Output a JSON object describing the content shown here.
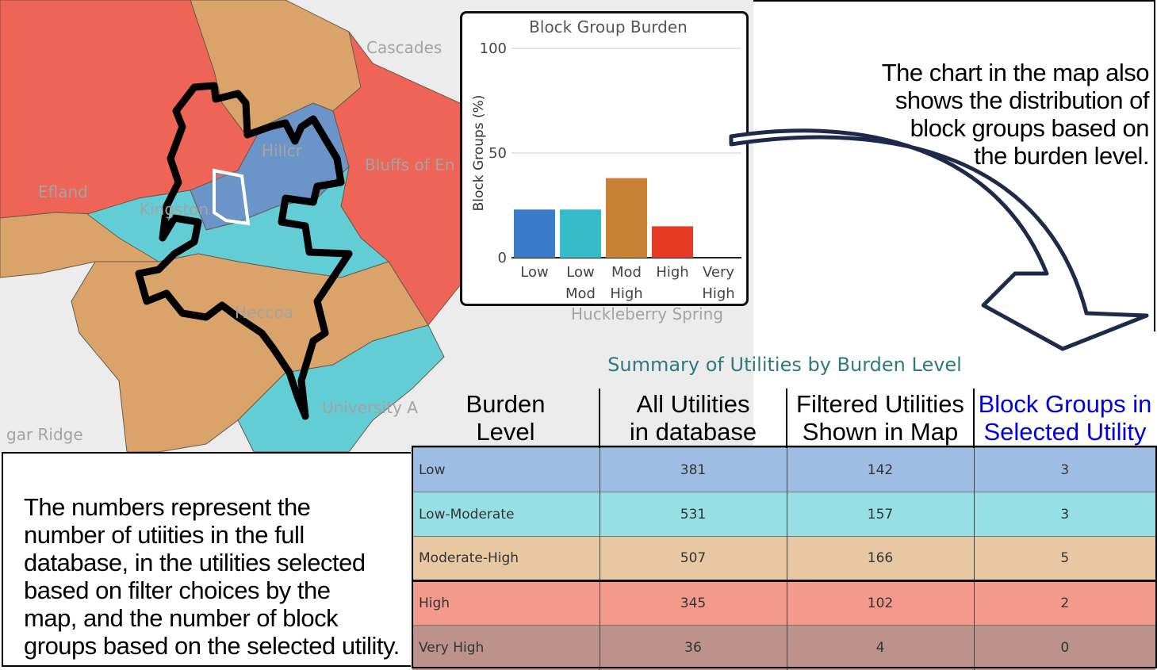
{
  "map": {
    "place_labels": [
      "Cascades",
      "Bluffs of En",
      "Hillcr",
      "Efland",
      "Kingston",
      "Heccoa",
      "Huckleberry Spring",
      "University A",
      "gar Ridge"
    ],
    "colors": {
      "low": "#6b95c8",
      "low_mod": "#63cdd5",
      "mod_high": "#d9a36a",
      "high": "#ee6456",
      "background": "#ececec",
      "boundary": "#000000",
      "selected": "#ffffff"
    }
  },
  "chart": {
    "title": "Block Group Burden",
    "ylabel": "Block Groups (%)",
    "yticks": [
      "100",
      "50",
      "0"
    ]
  },
  "chart_data": {
    "type": "bar",
    "title": "Block Group Burden",
    "xlabel": "",
    "ylabel": "Block Groups (%)",
    "categories": [
      "Low",
      "Low Mod",
      "Mod High",
      "High",
      "Very High"
    ],
    "category_lines": [
      [
        "Low"
      ],
      [
        "Low",
        "Mod"
      ],
      [
        "Mod",
        "High"
      ],
      [
        "High"
      ],
      [
        "Very",
        "High"
      ]
    ],
    "values": [
      23,
      23,
      38,
      15,
      0
    ],
    "colors": [
      "#3a7bcb",
      "#35bccb",
      "#c98235",
      "#e63a24",
      "#8f5a4f"
    ],
    "ylim": [
      0,
      100
    ],
    "yticks": [
      0,
      50,
      100
    ],
    "grid": true
  },
  "annotations": {
    "right_note": [
      "The chart in the map also",
      "shows the distribution of",
      "block groups based on",
      "the burden level."
    ],
    "left_note": [
      "The numbers represent the",
      "number of utiities in the full",
      "database, in the utilities selected",
      "based on filter choices by the",
      "map, and the number of block",
      "groups based on the selected utility."
    ]
  },
  "summary": {
    "title": "Summary of Utilities by Burden Level",
    "headers": [
      [
        "Burden",
        "Level"
      ],
      [
        "All Utilities",
        "in database"
      ],
      [
        "Filtered Utilities",
        "Shown in Map"
      ],
      [
        "Block Groups in",
        "Selected Utility"
      ]
    ],
    "header_highlight_color": "#0000e0",
    "rows": [
      {
        "level": "Low",
        "all": "381",
        "filtered": "142",
        "block_groups": "3",
        "color": "#9dbde4"
      },
      {
        "level": "Low-Moderate",
        "all": "531",
        "filtered": "157",
        "block_groups": "3",
        "color": "#96dfe4"
      },
      {
        "level": "Moderate-High",
        "all": "507",
        "filtered": "166",
        "block_groups": "5",
        "color": "#e8c7a3"
      },
      {
        "level": "High",
        "all": "345",
        "filtered": "102",
        "block_groups": "2",
        "color": "#f39a8d"
      },
      {
        "level": "Very High",
        "all": "36",
        "filtered": "4",
        "block_groups": "0",
        "color": "#bc928b"
      }
    ]
  }
}
